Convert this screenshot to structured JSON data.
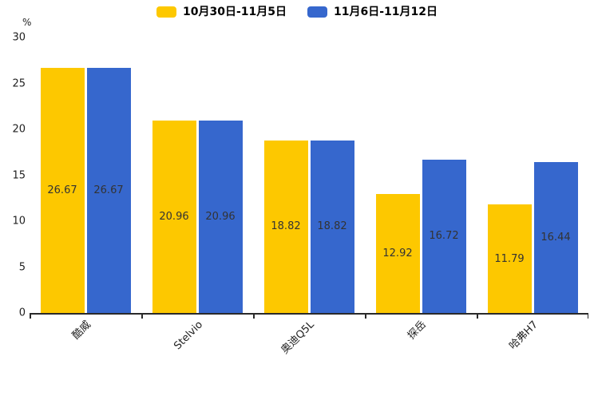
{
  "chart_data": {
    "type": "bar",
    "title": "",
    "ylabel": "%",
    "ylim": [
      0,
      30
    ],
    "yticks": [
      0,
      5,
      10,
      15,
      20,
      25,
      30
    ],
    "grid": false,
    "legend_position": "top",
    "value_labels": "centered inside bars, two decimals",
    "categories": [
      "酷威",
      "Stelvio",
      "奥迪Q5L",
      "探岳",
      "哈弗H7"
    ],
    "series": [
      {
        "name": "10月30日-11月5日",
        "color": "#FDC800",
        "values": [
          26.67,
          20.96,
          18.82,
          12.92,
          11.79
        ]
      },
      {
        "name": "11月6日-11月12日",
        "color": "#3667CD",
        "values": [
          26.67,
          20.96,
          18.82,
          16.72,
          16.44
        ]
      }
    ]
  }
}
